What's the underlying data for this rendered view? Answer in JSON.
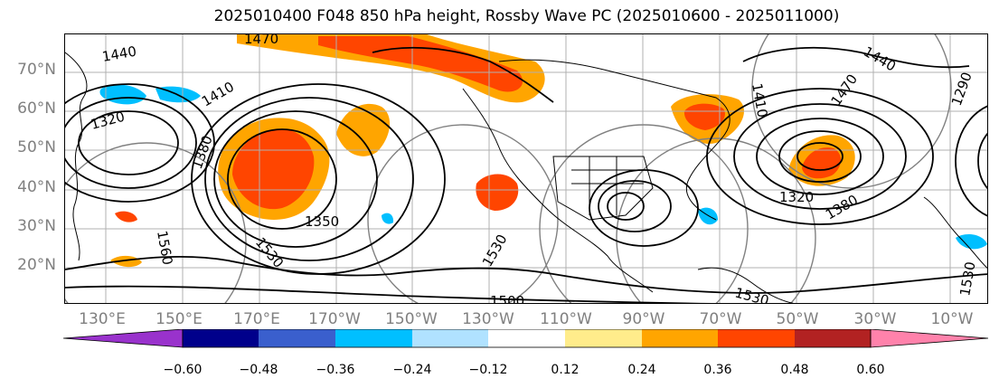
{
  "title": "2025010400 F048 850 hPa height, Rossby Wave PC (2025010600 - 2025011000)",
  "lat_labels": [
    "70°N",
    "60°N",
    "50°N",
    "40°N",
    "30°N",
    "20°N"
  ],
  "lon_labels": [
    "130°E",
    "150°E",
    "170°E",
    "170°W",
    "150°W",
    "130°W",
    "110°W",
    "90°W",
    "70°W",
    "50°W",
    "30°W",
    "10°W"
  ],
  "contour_labels": [
    "1440",
    "1470",
    "1410",
    "1380",
    "1350",
    "1320",
    "1560",
    "1530",
    "1500",
    "1530",
    "1530",
    "1470",
    "1440",
    "1410",
    "1380",
    "1320",
    "1290",
    "1530"
  ],
  "colorbar": {
    "tick_labels": [
      "−0.60",
      "−0.48",
      "−0.36",
      "−0.24",
      "−0.12",
      "0.12",
      "0.24",
      "0.36",
      "0.48",
      "0.60"
    ],
    "colors": [
      "#9932cc",
      "#00008b",
      "#3a5fcd",
      "#00bfff",
      "#b0e2ff",
      "#ffffff",
      "#ffec8b",
      "#ffa500",
      "#ff4500",
      "#b22222",
      "#ff82ab"
    ]
  },
  "colors": {
    "grid": "#b0b0b0",
    "contour": "#000000",
    "great_circle": "#808080",
    "axis_label": "#808080"
  }
}
